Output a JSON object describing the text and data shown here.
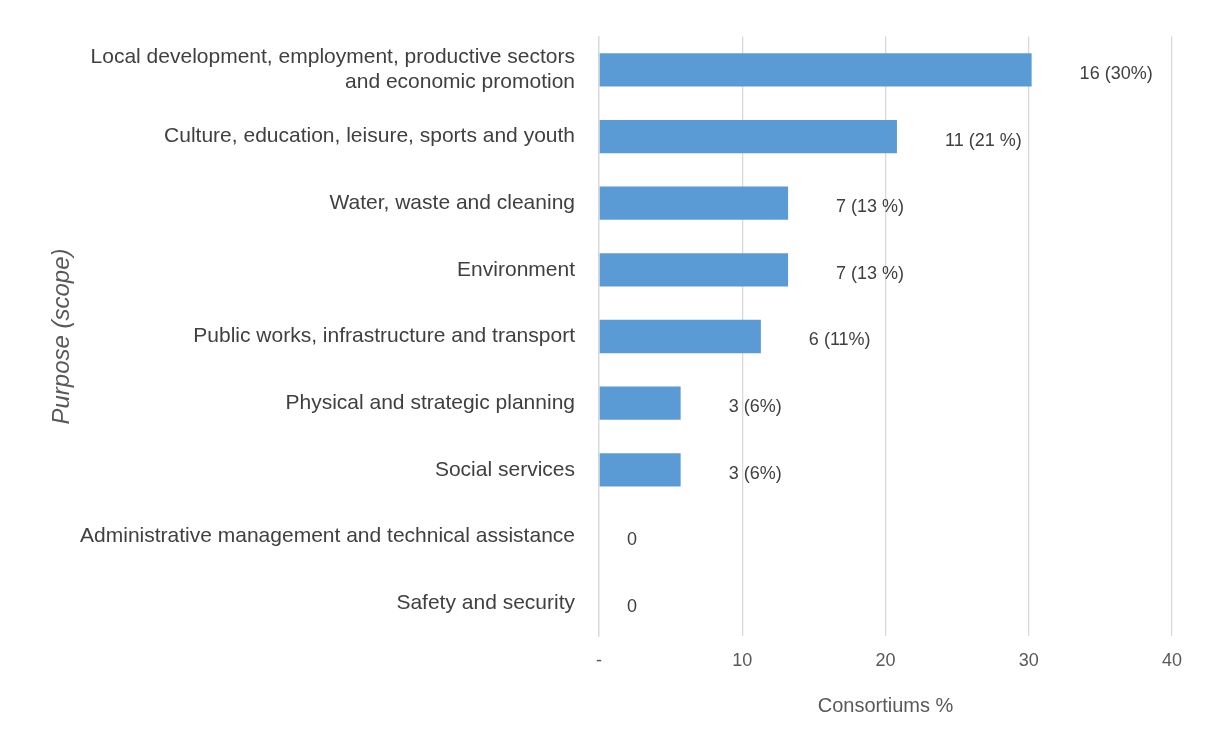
{
  "chart_data": {
    "type": "bar",
    "orientation": "horizontal",
    "xlabel": "Consortiums %",
    "ylabel": "Purpose (scope)",
    "categories": [
      "Local development, employment, productive sectors and economic promotion",
      "Culture, education, leisure, sports and youth",
      "Water, waste and cleaning",
      "Environment",
      "Public works, infrastructure and transport",
      "Physical and strategic planning",
      "Social services",
      "Administrative management and technical assistance",
      "Safety and security"
    ],
    "values": [
      30.2,
      20.8,
      13.2,
      13.2,
      11.3,
      5.7,
      5.7,
      0,
      0
    ],
    "value_labels": [
      "16 (30%)",
      "11 (21 %)",
      "7 (13 %)",
      "7 (13 %)",
      "6 (11%)",
      "3 (6%)",
      "3 (6%)",
      "0",
      "0"
    ],
    "color": "#5b9bd5",
    "xlim": [
      0,
      40
    ],
    "xticks": [
      {
        "value": 0,
        "label": "-"
      },
      10,
      20,
      30,
      40
    ],
    "grid": "x"
  }
}
